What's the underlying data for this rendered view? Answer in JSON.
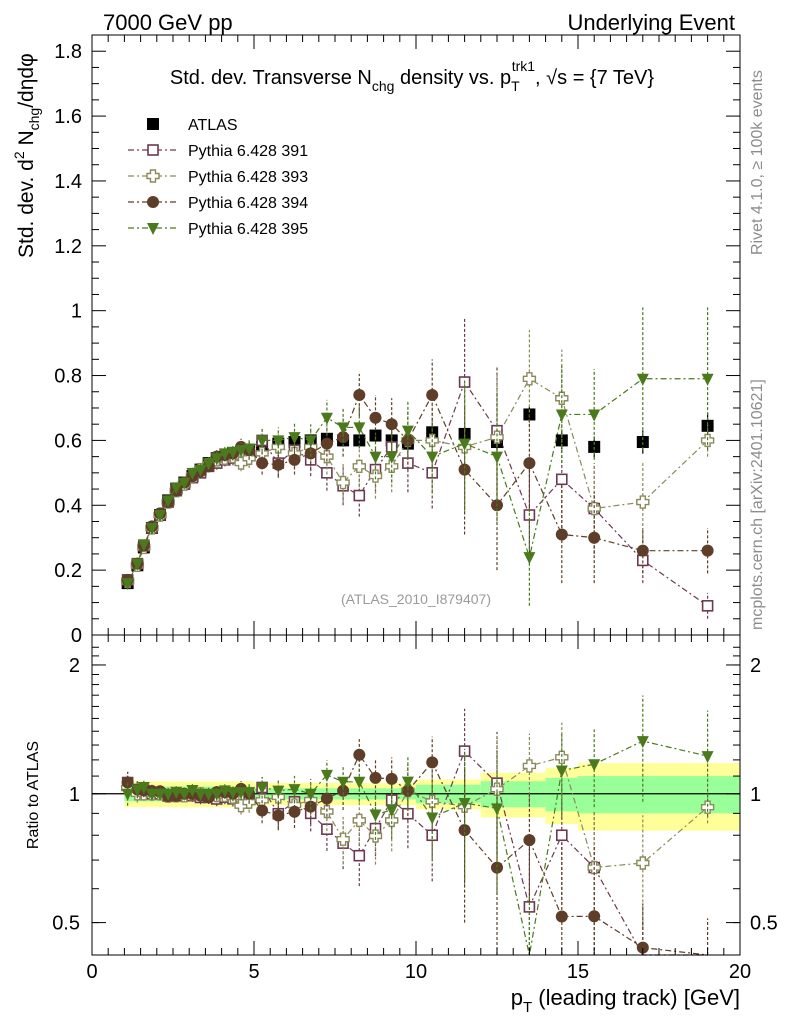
{
  "header": {
    "left": "7000 GeV pp",
    "right": "Underlying Event"
  },
  "side": {
    "top": "Rivet 4.1.0, ≥ 100k events",
    "bottom": "mcplots.cern.ch [arXiv:2401.10621]"
  },
  "colors": {
    "atlas": "#000000",
    "p391": "#6b3a52",
    "p393": "#8a8a5a",
    "p394": "#5e3e28",
    "p395": "#4a7a1c",
    "band_outer": "#ffff99",
    "band_inner": "#99ff99"
  },
  "chart_data": [
    {
      "type": "scatter",
      "panel": "main",
      "title": "Std. dev. Transverse N",
      "title_sub": "chg",
      "title_mid": " density vs. p",
      "title_sub2": "T",
      "title_sup2": "trk1",
      "title_tail": ", √s = {7 TeV}",
      "ylabel": "Std. dev. d",
      "ylabel_sup": "2",
      "ylabel_mid": " N",
      "ylabel_sub": "chg",
      "ylabel_tail": "/dηdφ",
      "xlabel": "p",
      "xlabel_sub": "T",
      "xlabel_tail": " (leading track) [GeV]",
      "watermark": "(ATLAS_2010_I879407)",
      "xlim": [
        0,
        20
      ],
      "ylim": [
        0,
        1.85
      ],
      "y_ticks": [
        0,
        0.2,
        0.4,
        0.6,
        0.8,
        1,
        1.2,
        1.4,
        1.6,
        1.8
      ],
      "y_tick_labels": [
        "0",
        "0.2",
        "0.4",
        "0.6",
        "0.8",
        "1",
        "1.2",
        "1.4",
        "1.6",
        "1.8"
      ],
      "x": [
        1.1,
        1.4,
        1.6,
        1.85,
        2.1,
        2.35,
        2.6,
        2.85,
        3.1,
        3.35,
        3.6,
        3.85,
        4.1,
        4.35,
        4.6,
        4.85,
        5.25,
        5.75,
        6.25,
        6.75,
        7.25,
        7.75,
        8.25,
        8.75,
        9.25,
        9.75,
        10.5,
        11.5,
        12.5,
        13.5,
        14.5,
        15.5,
        17.0,
        19.0
      ],
      "series": [
        {
          "name": "ATLAS",
          "key": "atlas",
          "marker": "square-filled",
          "values": [
            0.16,
            0.215,
            0.27,
            0.33,
            0.37,
            0.415,
            0.45,
            0.47,
            0.49,
            0.51,
            0.53,
            0.545,
            0.55,
            0.56,
            0.565,
            0.57,
            0.58,
            0.59,
            0.595,
            0.6,
            0.605,
            0.6,
            0.6,
            0.615,
            0.6,
            0.59,
            0.625,
            0.62,
            0.595,
            0.68,
            0.6,
            0.58,
            0.595,
            0.645
          ],
          "errors": [
            0.005,
            0.005,
            0.005,
            0.005,
            0.005,
            0.005,
            0.005,
            0.005,
            0.005,
            0.005,
            0.005,
            0.005,
            0.005,
            0.005,
            0.006,
            0.006,
            0.007,
            0.008,
            0.009,
            0.01,
            0.011,
            0.012,
            0.013,
            0.014,
            0.015,
            0.016,
            0.018,
            0.02,
            0.022,
            0.025,
            0.028,
            0.032,
            0.036,
            0.04
          ]
        },
        {
          "name": "Pythia 6.428 391",
          "key": "p391",
          "marker": "square-open",
          "values": [
            0.17,
            0.22,
            0.275,
            0.33,
            0.37,
            0.41,
            0.445,
            0.465,
            0.485,
            0.5,
            0.52,
            0.53,
            0.54,
            0.545,
            0.55,
            0.555,
            0.6,
            0.53,
            0.57,
            0.54,
            0.5,
            0.46,
            0.43,
            0.51,
            0.58,
            0.53,
            0.5,
            0.78,
            0.63,
            0.37,
            0.48,
            0.39,
            0.23,
            0.09
          ],
          "errors": [
            0.01,
            0.01,
            0.01,
            0.012,
            0.012,
            0.014,
            0.014,
            0.016,
            0.016,
            0.018,
            0.018,
            0.02,
            0.02,
            0.022,
            0.025,
            0.03,
            0.035,
            0.04,
            0.045,
            0.05,
            0.055,
            0.06,
            0.065,
            0.07,
            0.08,
            0.09,
            0.11,
            0.2,
            0.2,
            0.15,
            0.15,
            0.14,
            0.07,
            0.04
          ]
        },
        {
          "name": "Pythia 6.428 393",
          "key": "p393",
          "marker": "cross-open",
          "values": [
            0.165,
            0.215,
            0.27,
            0.33,
            0.37,
            0.41,
            0.445,
            0.465,
            0.49,
            0.51,
            0.525,
            0.54,
            0.545,
            0.55,
            0.53,
            0.545,
            0.56,
            0.58,
            0.56,
            0.58,
            0.55,
            0.47,
            0.52,
            0.49,
            0.52,
            0.6,
            0.6,
            0.58,
            0.61,
            0.79,
            0.73,
            0.39,
            0.41,
            0.6
          ],
          "errors": [
            0.01,
            0.01,
            0.01,
            0.012,
            0.012,
            0.014,
            0.014,
            0.016,
            0.016,
            0.018,
            0.018,
            0.02,
            0.02,
            0.022,
            0.025,
            0.03,
            0.035,
            0.04,
            0.045,
            0.05,
            0.055,
            0.06,
            0.065,
            0.07,
            0.08,
            0.09,
            0.11,
            0.2,
            0.2,
            0.15,
            0.15,
            0.14,
            0.12,
            0.05
          ]
        },
        {
          "name": "Pythia 6.428 394",
          "key": "p394",
          "marker": "circle-filled",
          "values": [
            0.17,
            0.22,
            0.275,
            0.335,
            0.375,
            0.41,
            0.445,
            0.47,
            0.49,
            0.505,
            0.52,
            0.55,
            0.555,
            0.56,
            0.58,
            0.57,
            0.53,
            0.525,
            0.54,
            0.56,
            0.59,
            0.61,
            0.74,
            0.67,
            0.65,
            0.6,
            0.74,
            0.51,
            0.4,
            0.53,
            0.31,
            0.3,
            0.26,
            0.26
          ],
          "errors": [
            0.01,
            0.01,
            0.01,
            0.012,
            0.012,
            0.014,
            0.014,
            0.016,
            0.016,
            0.018,
            0.018,
            0.02,
            0.02,
            0.022,
            0.025,
            0.03,
            0.035,
            0.04,
            0.045,
            0.05,
            0.055,
            0.06,
            0.065,
            0.07,
            0.08,
            0.09,
            0.11,
            0.2,
            0.2,
            0.15,
            0.15,
            0.14,
            0.07,
            0.07
          ]
        },
        {
          "name": "Pythia 6.428 395",
          "key": "p395",
          "marker": "triangle-down-filled",
          "values": [
            0.16,
            0.22,
            0.28,
            0.33,
            0.37,
            0.415,
            0.455,
            0.47,
            0.5,
            0.51,
            0.53,
            0.545,
            0.56,
            0.565,
            0.57,
            0.575,
            0.6,
            0.6,
            0.61,
            0.6,
            0.67,
            0.64,
            0.64,
            0.55,
            0.55,
            0.63,
            0.55,
            0.59,
            0.55,
            0.24,
            0.68,
            0.68,
            0.79,
            0.79
          ],
          "errors": [
            0.01,
            0.01,
            0.01,
            0.012,
            0.012,
            0.014,
            0.014,
            0.016,
            0.016,
            0.018,
            0.018,
            0.02,
            0.02,
            0.022,
            0.025,
            0.03,
            0.035,
            0.04,
            0.045,
            0.05,
            0.055,
            0.06,
            0.065,
            0.07,
            0.08,
            0.09,
            0.11,
            0.2,
            0.2,
            0.15,
            0.15,
            0.14,
            0.22,
            0.22
          ]
        }
      ],
      "legend_position": "top-left"
    },
    {
      "type": "scatter",
      "panel": "ratio",
      "ylabel": "Ratio to ATLAS",
      "xlim": [
        0,
        20
      ],
      "ylim": [
        0.42,
        2.35
      ],
      "y_scale": "log",
      "y_ticks": [
        0.5,
        1,
        2
      ],
      "y_tick_labels": [
        "0.5",
        "1",
        "2"
      ],
      "x_ticks": [
        0,
        5,
        10,
        15,
        20
      ],
      "x_tick_labels": [
        "0",
        "5",
        "10",
        "15",
        "20"
      ],
      "bands": {
        "x_edges": [
          1.0,
          5.0,
          10.0,
          12.0,
          14.0,
          15.0,
          20.0
        ],
        "outer": [
          0.07,
          0.06,
          0.08,
          0.12,
          0.15,
          0.18,
          0.2
        ],
        "inner": [
          0.04,
          0.03,
          0.05,
          0.07,
          0.09,
          0.1,
          0.12
        ]
      }
    }
  ]
}
